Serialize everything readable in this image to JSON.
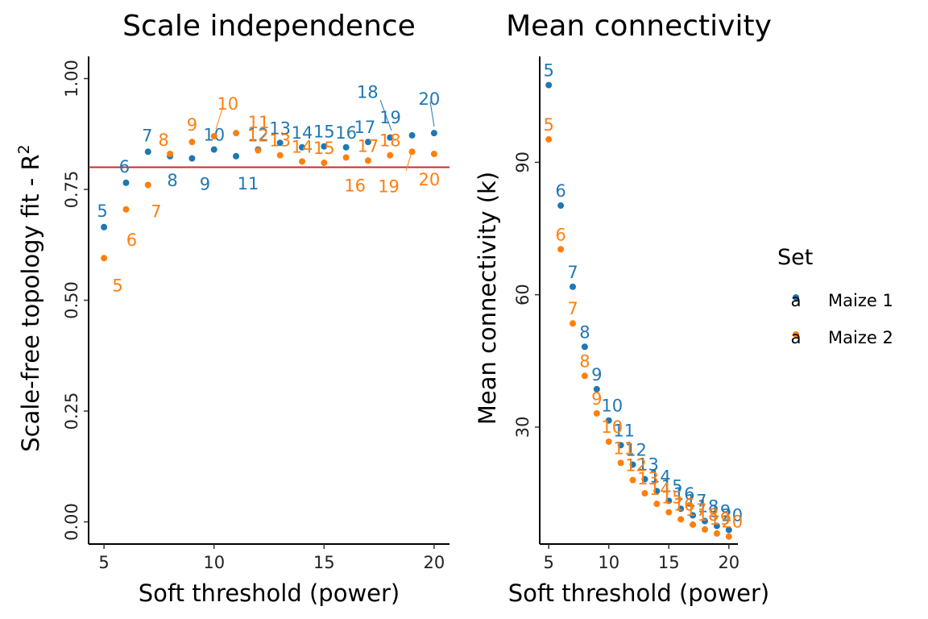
{
  "colors": {
    "maize1": "#1f77b4",
    "maize2": "#ff7f0e",
    "threshold": "#d62728"
  },
  "legend": {
    "title": "Set",
    "placement": "right",
    "items": [
      {
        "label": "Maize 1",
        "key_glyph": "a",
        "color": "#1f77b4"
      },
      {
        "label": "Maize 2",
        "key_glyph": "a",
        "color": "#ff7f0e"
      }
    ]
  },
  "chart_data": [
    {
      "type": "scatter",
      "title": "Scale independence",
      "xlabel": "Soft threshold (power)",
      "ylabel_main": "Scale-free topology fit - R",
      "ylabel_sup": "2",
      "xlim": [
        4.3,
        20.7
      ],
      "ylim": [
        -0.05,
        1.05
      ],
      "xticks": [
        5,
        10,
        15,
        20
      ],
      "yticks": [
        0.0,
        0.25,
        0.5,
        0.75,
        1.0
      ],
      "ytick_labels": [
        "0.00",
        "0.25",
        "0.50",
        "0.75",
        "1.00"
      ],
      "grid": false,
      "hline": {
        "y": 0.8,
        "color": "#d62728"
      },
      "series": [
        {
          "name": "Maize 1",
          "color": "#1f77b4",
          "x": [
            5,
            6,
            7,
            8,
            9,
            10,
            11,
            12,
            13,
            14,
            15,
            16,
            17,
            18,
            19,
            20
          ],
          "y": [
            0.665,
            0.765,
            0.835,
            0.825,
            0.82,
            0.84,
            0.825,
            0.84,
            0.855,
            0.845,
            0.847,
            0.845,
            0.857,
            0.867,
            0.872,
            0.877
          ],
          "labels": [
            "5",
            "6",
            "7",
            "8",
            "9",
            "10",
            "11",
            "12",
            "13",
            "14",
            "15",
            "16",
            "17",
            "18",
            "19",
            "20"
          ]
        },
        {
          "name": "Maize 2",
          "color": "#ff7f0e",
          "x": [
            5,
            6,
            7,
            8,
            9,
            10,
            11,
            12,
            13,
            14,
            15,
            16,
            17,
            18,
            19,
            20
          ],
          "y": [
            0.595,
            0.705,
            0.76,
            0.83,
            0.857,
            0.87,
            0.877,
            0.838,
            0.827,
            0.813,
            0.81,
            0.822,
            0.815,
            0.827,
            0.835,
            0.83
          ],
          "labels": [
            "5",
            "6",
            "7",
            "8",
            "9",
            "10",
            "11",
            "12",
            "13",
            "14",
            "15",
            "16",
            "17",
            "18",
            "19",
            "20"
          ]
        }
      ]
    },
    {
      "type": "scatter",
      "title": "Mean connectivity",
      "xlabel": "Soft threshold (power)",
      "ylabel": "Mean connectivity (k)",
      "xlim": [
        4.25,
        20.75
      ],
      "ylim": [
        3.5,
        114
      ],
      "xticks": [
        5,
        10,
        15,
        20
      ],
      "yticks": [
        30,
        60,
        90
      ],
      "grid": false,
      "series": [
        {
          "name": "Maize 1",
          "color": "#1f77b4",
          "x": [
            5,
            6,
            7,
            8,
            9,
            10,
            11,
            12,
            13,
            14,
            15,
            16,
            17,
            18,
            19,
            20
          ],
          "y": [
            107.5,
            80.2,
            61.8,
            48.2,
            38.6,
            31.5,
            25.9,
            21.5,
            18.2,
            15.5,
            13.3,
            11.5,
            10.0,
            8.7,
            7.6,
            6.7
          ],
          "labels": [
            "5",
            "6",
            "7",
            "8",
            "9",
            "10",
            "11",
            "12",
            "13",
            "14",
            "15",
            "16",
            "17",
            "18",
            "19",
            "20"
          ]
        },
        {
          "name": "Maize 2",
          "color": "#ff7f0e",
          "x": [
            5,
            6,
            7,
            8,
            9,
            10,
            11,
            12,
            13,
            14,
            15,
            16,
            17,
            18,
            19,
            20
          ],
          "y": [
            95.2,
            70.3,
            53.5,
            41.6,
            33.1,
            26.7,
            21.9,
            18.0,
            15.0,
            12.6,
            10.7,
            9.1,
            7.9,
            6.8,
            5.9,
            5.2
          ],
          "labels": [
            "5",
            "6",
            "7",
            "8",
            "9",
            "10",
            "11",
            "12",
            "13",
            "14",
            "15",
            "16",
            "17",
            "18",
            "19",
            "20"
          ]
        }
      ]
    }
  ]
}
